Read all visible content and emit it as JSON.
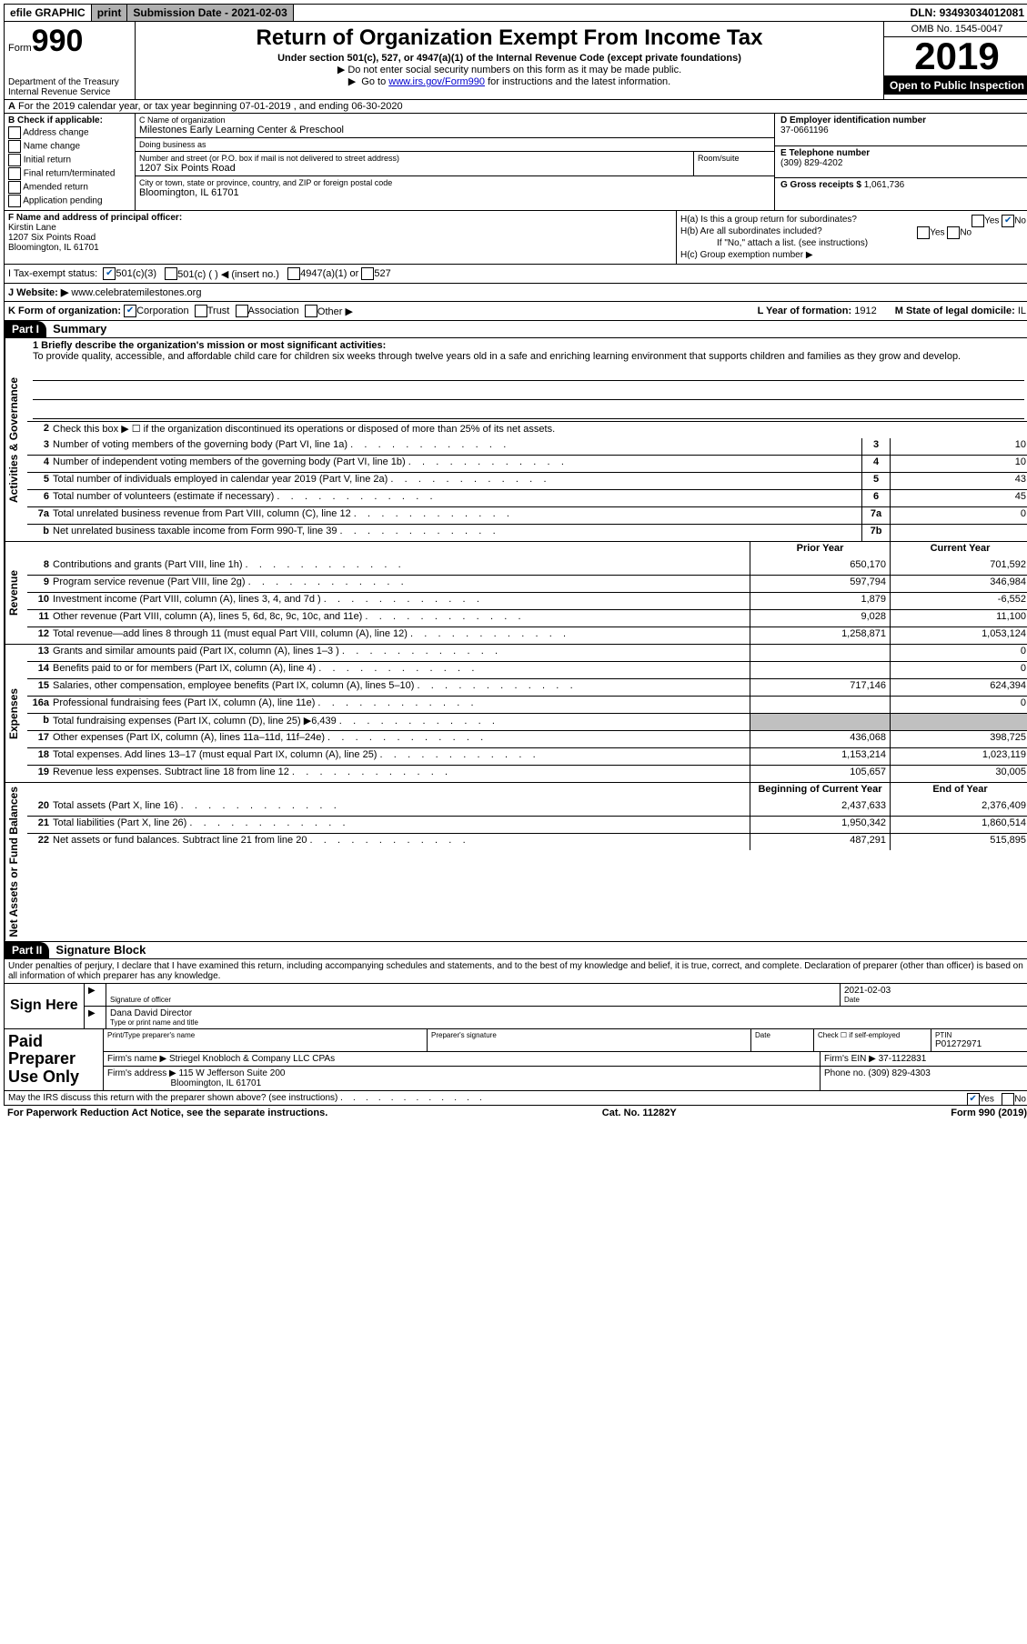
{
  "top_bar": {
    "efile": "efile GRAPHIC",
    "print": "print",
    "submission_label": "Submission Date -",
    "submission_date": "2021-02-03",
    "dln_label": "DLN:",
    "dln": "93493034012081"
  },
  "header": {
    "form_label": "Form",
    "form_no": "990",
    "dept": "Department of the Treasury\nInternal Revenue Service",
    "title": "Return of Organization Exempt From Income Tax",
    "subtitle": "Under section 501(c), 527, or 4947(a)(1) of the Internal Revenue Code (except private foundations)",
    "note1": "Do not enter social security numbers on this form as it may be made public.",
    "note2_pre": "Go to ",
    "note2_link": "www.irs.gov/Form990",
    "note2_post": " for instructions and the latest information.",
    "omb": "OMB No. 1545-0047",
    "year": "2019",
    "inspection": "Open to Public Inspection"
  },
  "line_a": "For the 2019 calendar year, or tax year beginning 07-01-2019    , and ending 06-30-2020",
  "section_b": {
    "title": "B Check if applicable:",
    "items": [
      "Address change",
      "Name change",
      "Initial return",
      "Final return/terminated",
      "Amended return",
      "Application pending"
    ]
  },
  "section_c": {
    "name_label": "C Name of organization",
    "name": "Milestones Early Learning Center & Preschool",
    "dba_label": "Doing business as",
    "dba": "",
    "street_label": "Number and street (or P.O. box if mail is not delivered to street address)",
    "street": "1207 Six Points Road",
    "suite_label": "Room/suite",
    "city_label": "City or town, state or province, country, and ZIP or foreign postal code",
    "city": "Bloomington, IL  61701"
  },
  "section_d": {
    "label": "D Employer identification number",
    "value": "37-0661196"
  },
  "section_e": {
    "label": "E Telephone number",
    "value": "(309) 829-4202"
  },
  "section_g": {
    "label": "G Gross receipts $",
    "value": "1,061,736"
  },
  "section_f": {
    "label": "F  Name and address of principal officer:",
    "name": "Kirstin Lane",
    "addr1": "1207 Six Points Road",
    "addr2": "Bloomington, IL  61701"
  },
  "section_h": {
    "ha": "H(a)  Is this a group return for subordinates?",
    "hb": "H(b)  Are all subordinates included?",
    "hb_note": "If \"No,\" attach a list. (see instructions)",
    "hc": "H(c)  Group exemption number ▶",
    "ha_answer_no": true
  },
  "line_i": {
    "label": "I  Tax-exempt status:",
    "opt1": "501(c)(3)",
    "opt2": "501(c) (  ) ◀ (insert no.)",
    "opt3": "4947(a)(1) or",
    "opt4": "527",
    "checked": 1
  },
  "line_j": {
    "label": "J  Website: ▶",
    "value": "www.celebratemilestones.org"
  },
  "line_k": {
    "label": "K Form of organization:",
    "opts": [
      "Corporation",
      "Trust",
      "Association",
      "Other ▶"
    ],
    "l_label": "L Year of formation:",
    "l_value": "1912",
    "m_label": "M State of legal domicile:",
    "m_value": "IL"
  },
  "part1": {
    "tag": "Part I",
    "title": "Summary",
    "mission_label": "1   Briefly describe the organization's mission or most significant activities:",
    "mission": "To provide quality, accessible, and affordable child care for children six weeks through twelve years old in a safe and enriching learning environment that supports children and families as they grow and develop.",
    "line2": "Check this box ▶ ☐  if the organization discontinued its operations or disposed of more than 25% of its net assets.",
    "sections": {
      "gov_label": "Activities & Governance",
      "rev_label": "Revenue",
      "exp_label": "Expenses",
      "net_label": "Net Assets or Fund Balances"
    },
    "col_headers": {
      "prior": "Prior Year",
      "current": "Current Year",
      "begin": "Beginning of Current Year",
      "end": "End of Year"
    },
    "gov_rows": [
      {
        "n": "3",
        "t": "Number of voting members of the governing body (Part VI, line 1a)",
        "box": "3",
        "v": "10"
      },
      {
        "n": "4",
        "t": "Number of independent voting members of the governing body (Part VI, line 1b)",
        "box": "4",
        "v": "10"
      },
      {
        "n": "5",
        "t": "Total number of individuals employed in calendar year 2019 (Part V, line 2a)",
        "box": "5",
        "v": "43"
      },
      {
        "n": "6",
        "t": "Total number of volunteers (estimate if necessary)",
        "box": "6",
        "v": "45"
      },
      {
        "n": "7a",
        "t": "Total unrelated business revenue from Part VIII, column (C), line 12",
        "box": "7a",
        "v": "0"
      },
      {
        "n": "b",
        "t": "Net unrelated business taxable income from Form 990-T, line 39",
        "box": "7b",
        "v": ""
      }
    ],
    "rev_rows": [
      {
        "n": "8",
        "t": "Contributions and grants (Part VIII, line 1h)",
        "v1": "650,170",
        "v2": "701,592"
      },
      {
        "n": "9",
        "t": "Program service revenue (Part VIII, line 2g)",
        "v1": "597,794",
        "v2": "346,984"
      },
      {
        "n": "10",
        "t": "Investment income (Part VIII, column (A), lines 3, 4, and 7d )",
        "v1": "1,879",
        "v2": "-6,552"
      },
      {
        "n": "11",
        "t": "Other revenue (Part VIII, column (A), lines 5, 6d, 8c, 9c, 10c, and 11e)",
        "v1": "9,028",
        "v2": "11,100"
      },
      {
        "n": "12",
        "t": "Total revenue—add lines 8 through 11 (must equal Part VIII, column (A), line 12)",
        "v1": "1,258,871",
        "v2": "1,053,124"
      }
    ],
    "exp_rows": [
      {
        "n": "13",
        "t": "Grants and similar amounts paid (Part IX, column (A), lines 1–3 )",
        "v1": "",
        "v2": "0"
      },
      {
        "n": "14",
        "t": "Benefits paid to or for members (Part IX, column (A), line 4)",
        "v1": "",
        "v2": "0"
      },
      {
        "n": "15",
        "t": "Salaries, other compensation, employee benefits (Part IX, column (A), lines 5–10)",
        "v1": "717,146",
        "v2": "624,394"
      },
      {
        "n": "16a",
        "t": "Professional fundraising fees (Part IX, column (A), line 11e)",
        "v1": "",
        "v2": "0"
      },
      {
        "n": "b",
        "t": "Total fundraising expenses (Part IX, column (D), line 25) ▶6,439",
        "v1": "grey",
        "v2": "grey"
      },
      {
        "n": "17",
        "t": "Other expenses (Part IX, column (A), lines 11a–11d, 11f–24e)",
        "v1": "436,068",
        "v2": "398,725"
      },
      {
        "n": "18",
        "t": "Total expenses. Add lines 13–17 (must equal Part IX, column (A), line 25)",
        "v1": "1,153,214",
        "v2": "1,023,119"
      },
      {
        "n": "19",
        "t": "Revenue less expenses. Subtract line 18 from line 12",
        "v1": "105,657",
        "v2": "30,005"
      }
    ],
    "net_rows": [
      {
        "n": "20",
        "t": "Total assets (Part X, line 16)",
        "v1": "2,437,633",
        "v2": "2,376,409"
      },
      {
        "n": "21",
        "t": "Total liabilities (Part X, line 26)",
        "v1": "1,950,342",
        "v2": "1,860,514"
      },
      {
        "n": "22",
        "t": "Net assets or fund balances. Subtract line 21 from line 20",
        "v1": "487,291",
        "v2": "515,895"
      }
    ]
  },
  "part2": {
    "tag": "Part II",
    "title": "Signature Block",
    "penalty": "Under penalties of perjury, I declare that I have examined this return, including accompanying schedules and statements, and to the best of my knowledge and belief, it is true, correct, and complete. Declaration of preparer (other than officer) is based on all information of which preparer has any knowledge.",
    "sign_here": "Sign Here",
    "sig_officer": "Signature of officer",
    "date_label": "Date",
    "sig_date": "2021-02-03",
    "officer_name": "Dana David  Director",
    "type_label": "Type or print name and title",
    "paid_label": "Paid Preparer Use Only",
    "prep_name_label": "Print/Type preparer's name",
    "prep_sig_label": "Preparer's signature",
    "prep_date_label": "Date",
    "check_self": "Check ☐ if self-employed",
    "ptin_label": "PTIN",
    "ptin": "P01272971",
    "firm_name_label": "Firm's name    ▶",
    "firm_name": "Striegel Knobloch & Company LLC CPAs",
    "firm_ein_label": "Firm's EIN ▶",
    "firm_ein": "37-1122831",
    "firm_addr_label": "Firm's address ▶",
    "firm_addr1": "115 W Jefferson Suite 200",
    "firm_addr2": "Bloomington, IL  61701",
    "phone_label": "Phone no.",
    "phone": "(309) 829-4303",
    "discuss": "May the IRS discuss this return with the preparer shown above? (see instructions)",
    "discuss_yes": true
  },
  "footer": {
    "left": "For Paperwork Reduction Act Notice, see the separate instructions.",
    "mid": "Cat. No. 11282Y",
    "right": "Form 990 (2019)"
  }
}
